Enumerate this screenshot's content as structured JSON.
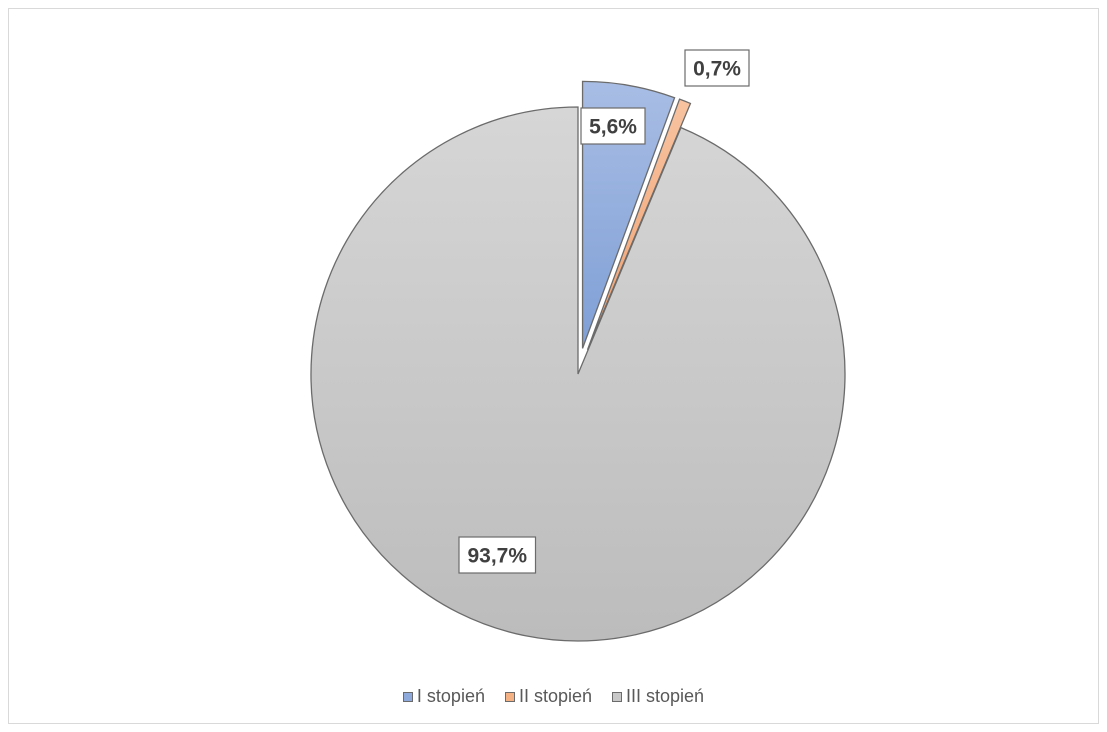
{
  "chart_data": {
    "type": "pie",
    "categories": [
      "I stopień",
      "II stopień",
      "III stopień"
    ],
    "values": [
      5.6,
      0.7,
      93.7
    ],
    "data_labels": [
      "5,6%",
      "0,7%",
      "93,7%"
    ],
    "colors": [
      "#8ea9db",
      "#f4b183",
      "#c8c8c8"
    ],
    "exploded": true,
    "start_angle": "12 o'clock, clockwise",
    "legend_position": "bottom"
  }
}
